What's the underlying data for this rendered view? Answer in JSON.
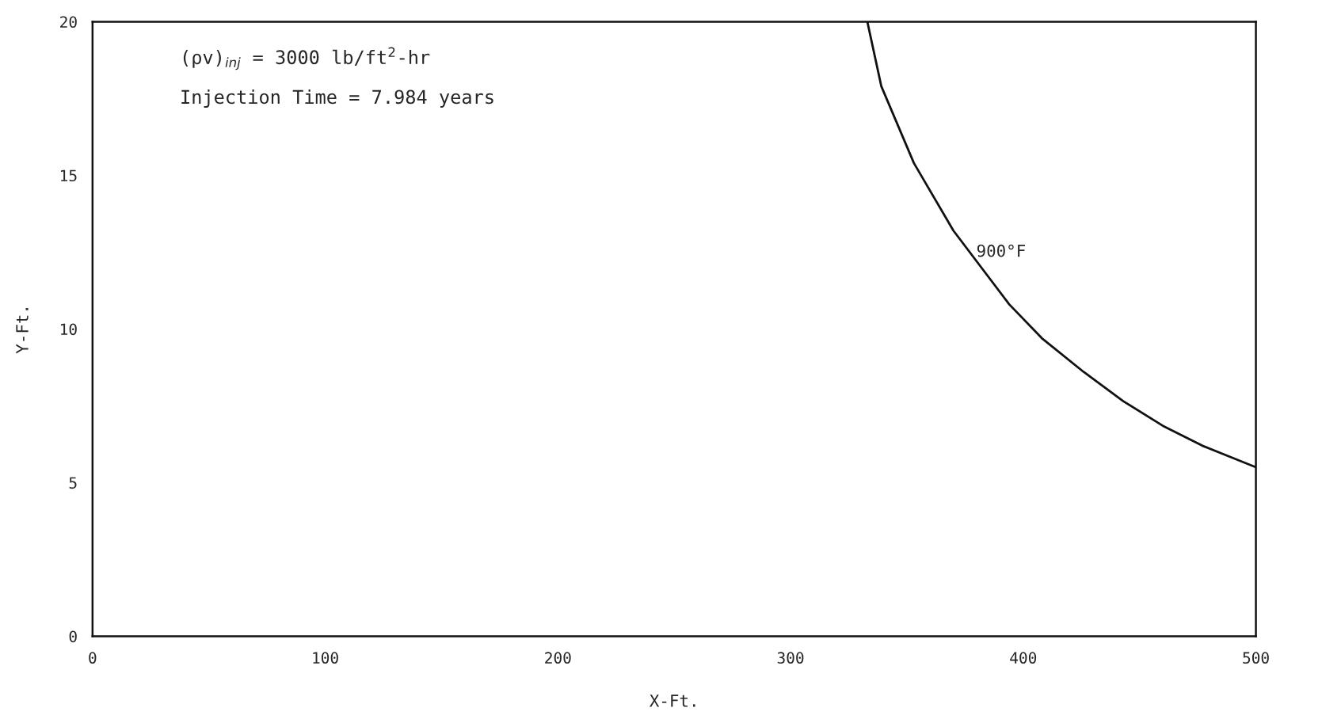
{
  "chart_data": {
    "type": "line",
    "xlabel": "X-Ft.",
    "ylabel": "Y-Ft.",
    "series": [
      {
        "color": "#111111",
        "x": [
          333,
          339,
          353,
          370,
          394,
          408,
          426,
          443,
          460,
          477,
          500
        ],
        "values": [
          20,
          17.9,
          15.4,
          13.2,
          10.8,
          9.7,
          8.6,
          7.65,
          6.85,
          6.2,
          5.5
        ]
      }
    ],
    "annotations": [
      "(ρv)$_{inj}$ = 3000 lb/ft$^{2}$-hr",
      "Injection Time = 7.984 years",
      {
        "text": "900°F",
        "x": 377,
        "y": 12.5
      }
    ],
    "xlim": [
      0,
      500
    ],
    "ylim": [
      0,
      20
    ],
    "xticks": [
      0,
      100,
      200,
      300,
      400,
      500
    ],
    "yticks": [
      0,
      5,
      10,
      15,
      20
    ],
    "grid": false,
    "legend": false,
    "marker": "none",
    "line_style": "solid"
  }
}
